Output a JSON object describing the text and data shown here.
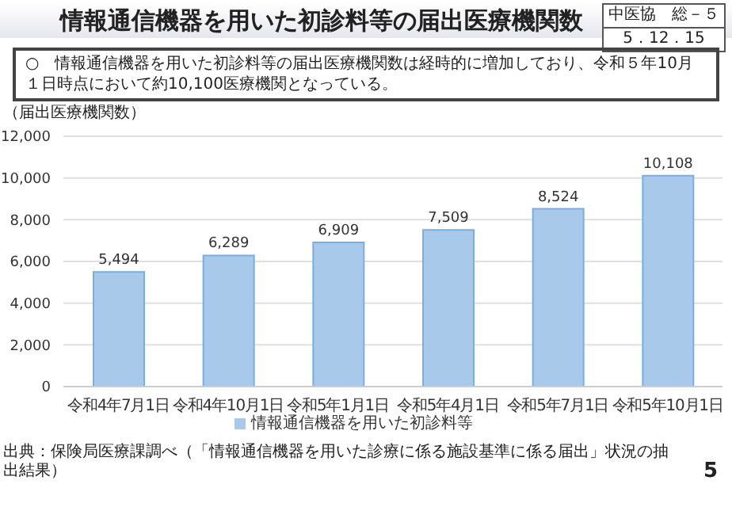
{
  "chart_data": {
    "type": "bar",
    "title": "情報通信機器を用いた初診料等の届出医療機関数",
    "annotations": [
      "中医協　総－５",
      "5．12．15",
      "○　情報通信機器を用いた初診料等の届出医療機関数は経時的に増加しており、令和５年10月１日時点において約10,100医療機関となっている。",
      "出典：保険局医療課調べ（「情報通信機器を用いた診療に係る施設基準に係る届出」状況の抽出結果）",
      "5"
    ],
    "ylabel": "（届出医療機関数）",
    "categories": [
      "令和4年7月1日",
      "令和4年10月1日",
      "令和5年1月1日",
      "令和5年4月1日",
      "令和5年7月1日",
      "令和5年10月1日"
    ],
    "series": [
      {
        "name": "情報通信機器を用いた初診料等",
        "color": "#a9c9ea",
        "values": [
          5494,
          6289,
          6909,
          7509,
          8524,
          10108
        ],
        "value_labels": [
          "5,494",
          "6,289",
          "6,909",
          "7,509",
          "8,524",
          "10,108"
        ]
      }
    ],
    "ylim": [
      0,
      12000
    ],
    "yticks": [
      0,
      {
        "value": 2000,
        "label": "2,000"
      },
      {
        "value": 4000,
        "label": "4,000"
      },
      {
        "value": 6000,
        "label": "6,000"
      },
      {
        "value": 8000,
        "label": "8,000"
      },
      {
        "value": 10000,
        "label": "10,000"
      },
      {
        "value": 12000,
        "label": "12,000"
      }
    ],
    "grid": "y",
    "legend": "bottom"
  }
}
